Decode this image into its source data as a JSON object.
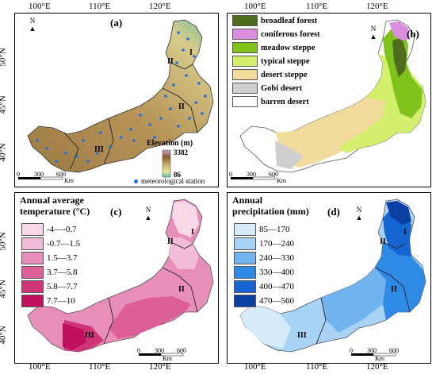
{
  "axes": {
    "longitudes": [
      "100°E",
      "110°E",
      "120°E"
    ],
    "latitudes": [
      "50°N",
      "45°N",
      "40°N"
    ]
  },
  "panels": {
    "a": {
      "letter": "(a)",
      "elevation_title": "Elevation (m)",
      "elevation_max": "3382",
      "elevation_min": "86",
      "station_label": "meteorological station",
      "regions": [
        "I",
        "II",
        "II",
        "III"
      ]
    },
    "b": {
      "letter": "(b)",
      "land_cover": [
        {
          "label": "broadleaf forest",
          "color": "#4f6b1e"
        },
        {
          "label": "coniferous forest",
          "color": "#d98ee0"
        },
        {
          "label": "meadow steppe",
          "color": "#7fc21c"
        },
        {
          "label": "typical steppe",
          "color": "#d3ef6d"
        },
        {
          "label": "desert steppe",
          "color": "#f1dc9d"
        },
        {
          "label": "Gobi desert",
          "color": "#cfcfcf"
        },
        {
          "label": "barren desert",
          "color": "#ffffff"
        }
      ]
    },
    "c": {
      "letter": "(c)",
      "title_line1": "Annual average",
      "title_line2": "temperature (°C)",
      "classes": [
        {
          "label": "-4—-0.7",
          "color": "#f7d7e8"
        },
        {
          "label": "-0.7—1.5",
          "color": "#f1bcd6"
        },
        {
          "label": "1.5—3.7",
          "color": "#e88fb9"
        },
        {
          "label": "3.7—5.8",
          "color": "#dd5f98"
        },
        {
          "label": "5.8—7.7",
          "color": "#cf3479"
        },
        {
          "label": "7.7—10",
          "color": "#c0105e"
        }
      ],
      "regions": [
        "I",
        "II",
        "II",
        "III"
      ]
    },
    "d": {
      "letter": "(d)",
      "title_line1": "Annual",
      "title_line2": "precipitation (mm)",
      "classes": [
        {
          "label": "85—170",
          "color": "#d6ecfb"
        },
        {
          "label": "170—240",
          "color": "#a9d3f5"
        },
        {
          "label": "240—330",
          "color": "#72b4ef"
        },
        {
          "label": "330—400",
          "color": "#2f8ae6"
        },
        {
          "label": "400—470",
          "color": "#1665d0"
        },
        {
          "label": "470—560",
          "color": "#0b3fa3"
        }
      ],
      "regions": [
        "I",
        "II",
        "II",
        "III"
      ]
    }
  },
  "scale_bar": {
    "ticks": [
      "0",
      "300",
      "600"
    ],
    "unit": "Km"
  },
  "north_label": "N"
}
